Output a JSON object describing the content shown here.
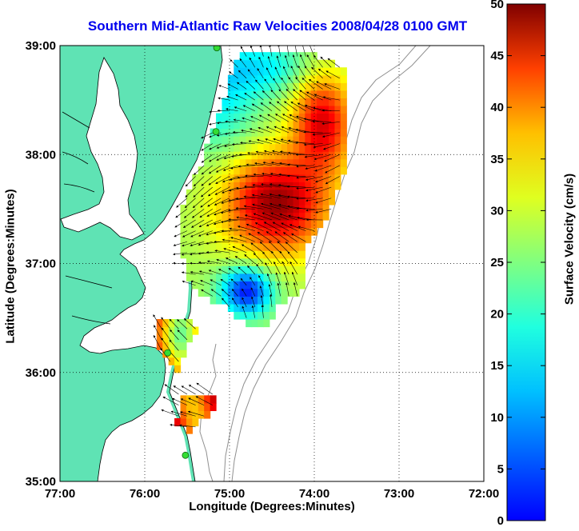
{
  "title": "Southern Mid-Atlantic Raw Velocities 2008/04/28 0100 GMT",
  "xlabel": "Longitude (Degrees:Minutes)",
  "ylabel": "Latitude (Degrees:Minutes)",
  "colorbar": {
    "label": "Surface Velocity (cm/s)",
    "ticks": [
      "0",
      "5",
      "10",
      "15",
      "20",
      "25",
      "30",
      "35",
      "40",
      "45",
      "50"
    ],
    "range": [
      0,
      50
    ],
    "colormap": "jet"
  },
  "map": {
    "xticks": [
      "77:00",
      "76:00",
      "75:00",
      "74:00",
      "73:00",
      "72:00"
    ],
    "yticks": [
      "39:00",
      "38:00",
      "37:00",
      "36:00",
      "35:00"
    ],
    "lon_range": [
      -77,
      -72
    ],
    "lat_range": [
      35,
      39
    ],
    "grid": "dotted",
    "land_color": "#5fe3b4",
    "bathymetry_color": "#909090",
    "site_marker_color": "#33dd33"
  },
  "chart_data": {
    "type": "heatmap",
    "variable": "surface current speed with direction vectors",
    "title": "Southern Mid-Atlantic Raw Velocities 2008/04/28 0100 GMT",
    "xlabel": "Longitude (Degrees:Minutes)",
    "ylabel": "Latitude (Degrees:Minutes)",
    "xlim": [
      -77,
      -72
    ],
    "ylim": [
      35,
      39
    ],
    "clim": [
      0,
      50
    ],
    "colorbar_label": "Surface Velocity (cm/s)",
    "grid": true,
    "sites": [
      {
        "lon": -75.15,
        "lat": 38.98
      },
      {
        "lon": -75.16,
        "lat": 38.21
      },
      {
        "lon": -75.73,
        "lat": 36.18
      },
      {
        "lon": -75.52,
        "lat": 35.24
      }
    ]
  }
}
